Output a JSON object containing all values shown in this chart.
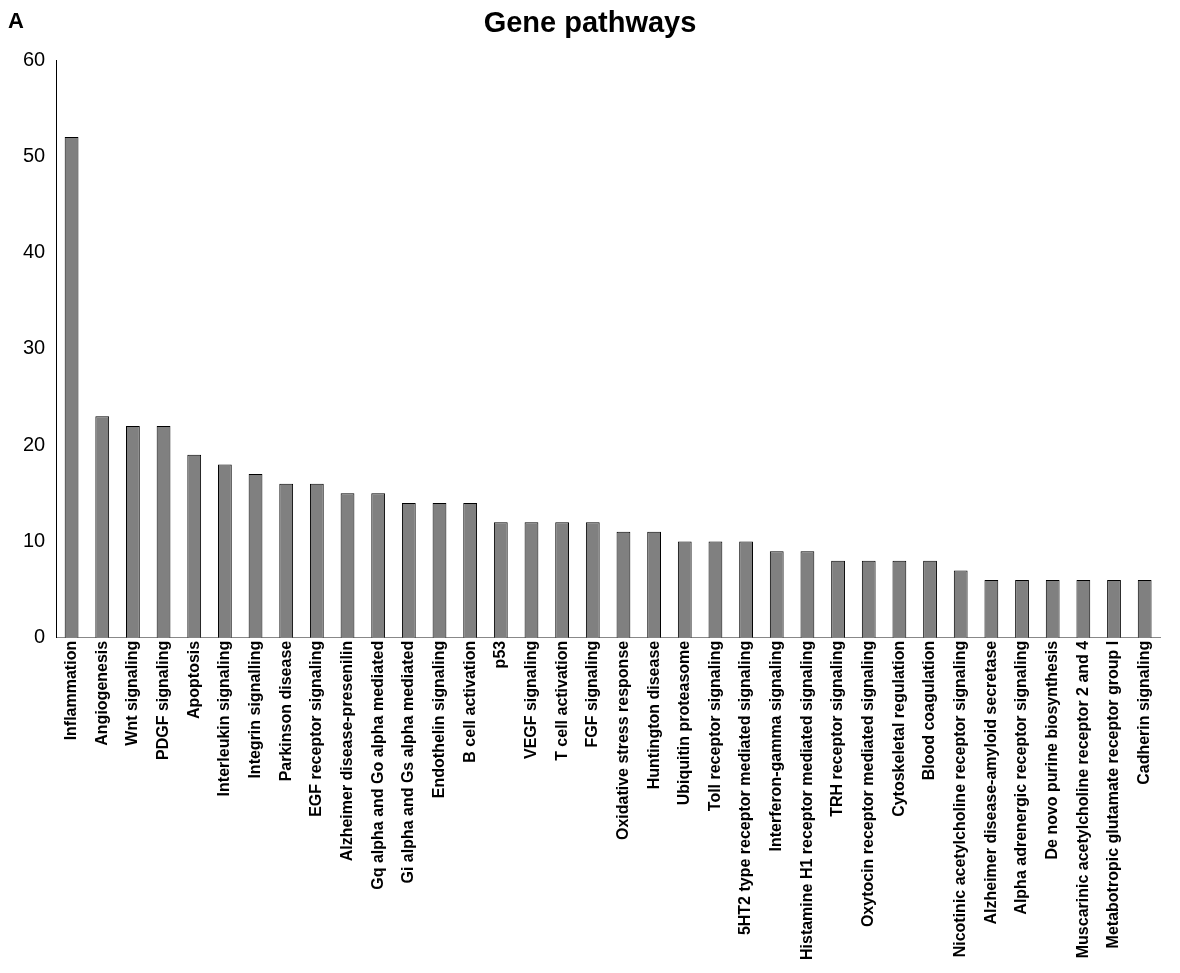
{
  "chart_data": {
    "type": "bar",
    "title": "Gene pathways",
    "annotations": [
      "A"
    ],
    "categories": [
      "Inflammation",
      "Angiogenesis",
      "Wnt signaling",
      "PDGF signaling",
      "Apoptosis",
      "Interleukin signaling",
      "Integrin signalling",
      "Parkinson disease",
      "EGF receptor signaling",
      "Alzheimer disease-presenilin",
      "Gq alpha and Go alpha mediated",
      "Gi alpha and Gs alpha mediated",
      "Endothelin signaling",
      "B cell activation",
      "p53",
      "VEGF signaling",
      "T cell activation",
      "FGF signaling",
      "Oxidative stress response",
      "Huntington disease",
      "Ubiquitin proteasome",
      "Toll receptor signaling",
      "5HT2 type receptor mediated signaling",
      "Interferon-gamma signaling",
      "Histamine H1 receptor mediated signaling",
      "TRH receptor signaling",
      "Oxytocin receptor mediated signaling",
      "Cytoskeletal regulation",
      "Blood coagulation",
      "Nicotinic acetylcholine receptor signaling",
      "Alzheimer disease-amyloid secretase",
      "Alpha adrenergic receptor signaling",
      "De novo purine biosynthesis",
      "Muscarinic acetylcholine receptor 2 and 4",
      "Metabotropic glutamate receptor group I",
      "Cadherin signaling"
    ],
    "values": [
      52,
      23,
      22,
      22,
      19,
      18,
      17,
      16,
      16,
      15,
      15,
      14,
      14,
      14,
      12,
      12,
      12,
      12,
      11,
      11,
      10,
      10,
      10,
      9,
      9,
      8,
      8,
      8,
      8,
      7,
      6,
      6,
      6,
      6,
      6,
      6
    ],
    "color": "#808080",
    "ylim": [
      0,
      60
    ],
    "yticks": [
      0,
      10,
      20,
      30,
      40,
      50,
      60
    ],
    "grid": false,
    "legend": false
  }
}
